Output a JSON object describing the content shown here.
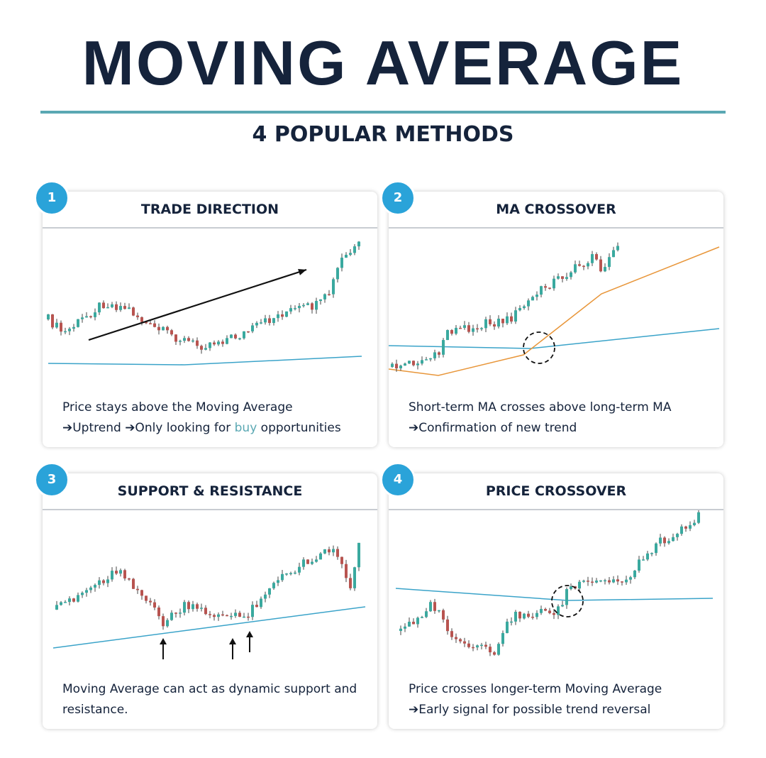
{
  "header": {
    "title": "MOVING AVERAGE",
    "subtitle": "4 POPULAR METHODS"
  },
  "panels": [
    {
      "number": "1",
      "title": "TRADE DIRECTION",
      "lines": [
        [
          "Price stays above the Moving Average"
        ],
        [
          "➔Uptrend ➔Only looking for ",
          "buy",
          " opportunities"
        ]
      ]
    },
    {
      "number": "2",
      "title": "MA CROSSOVER",
      "lines": [
        [
          "Short-term MA crosses above long-term MA"
        ],
        [
          "➔Confirmation of new trend"
        ]
      ]
    },
    {
      "number": "3",
      "title": "SUPPORT & RESISTANCE",
      "lines": [
        [
          "Moving Average can act as dynamic support and"
        ],
        [
          "resistance."
        ]
      ]
    },
    {
      "number": "4",
      "title": "PRICE CROSSOVER",
      "lines": [
        [
          "Price crosses longer-term Moving Average"
        ],
        [
          "➔Early signal for possible trend reversal"
        ]
      ]
    }
  ]
}
